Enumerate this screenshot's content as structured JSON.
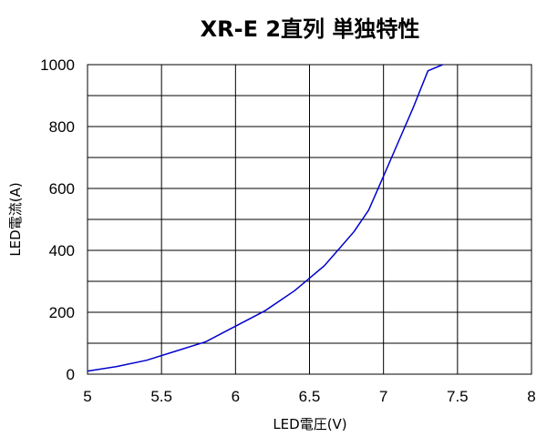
{
  "colors": {
    "background": "#ffffff",
    "grid": "#000000",
    "series": "#0000cc"
  },
  "chart_data": {
    "type": "line",
    "title": "XR-E 2直列 単独特性",
    "xlabel": "LED電圧(V)",
    "ylabel": "LED電流(A)",
    "xlim": [
      5,
      8
    ],
    "ylim": [
      0,
      1000
    ],
    "xticks": [
      5,
      5.5,
      6,
      6.5,
      7,
      7.5,
      8
    ],
    "xtick_labels": [
      "5",
      "5.5",
      "6",
      "6.5",
      "7",
      "7.5",
      "8"
    ],
    "yticks": [
      0,
      200,
      400,
      600,
      800,
      1000
    ],
    "ytick_labels": [
      "0",
      "200",
      "400",
      "600",
      "800",
      "1000"
    ],
    "grid": true,
    "x_grid_step": 0.5,
    "y_grid_step": 100,
    "legend": "none",
    "series": [
      {
        "x": [
          5.0,
          5.2,
          5.4,
          5.6,
          5.8,
          6.0,
          6.2,
          6.4,
          6.6,
          6.8,
          6.9,
          7.0,
          7.1,
          7.2,
          7.3,
          7.4
        ],
        "y": [
          10,
          25,
          45,
          75,
          105,
          155,
          205,
          270,
          350,
          460,
          530,
          640,
          750,
          860,
          980,
          1000
        ]
      }
    ]
  }
}
